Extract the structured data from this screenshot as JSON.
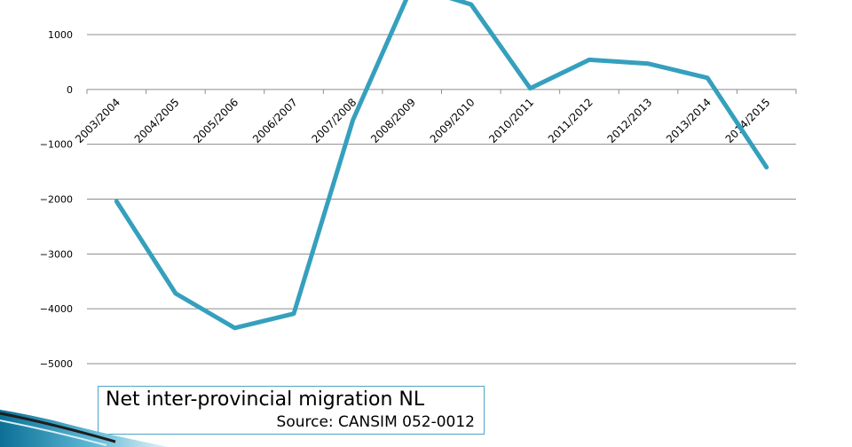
{
  "chart_data": {
    "type": "line",
    "title": "Net inter-provincial migration NL",
    "subtitle": "Source:  CANSIM 052-0012",
    "categories": [
      "2003/2004",
      "2004/2005",
      "2005/2006",
      "2006/2007",
      "2007/2008",
      "2008/2009",
      "2009/2010",
      "2010/2011",
      "2011/2012",
      "2012/2013",
      "2013/2014",
      "2014/2015"
    ],
    "series": [
      {
        "values": [
          -2040,
          -3720,
          -4350,
          -4090,
          -560,
          1880,
          1550,
          20,
          540,
          470,
          210,
          -1420
        ]
      }
    ],
    "y_ticks": [
      1000,
      0,
      -1000,
      -2000,
      -3000,
      -4000,
      -5000
    ],
    "y_tick_labels": [
      "1000",
      "0",
      "−1000",
      "−2000",
      "−3000",
      "−4000",
      "−5000"
    ],
    "ylim": [
      -5000,
      2000
    ],
    "grid": true,
    "colors": {
      "line": "#35a0bd",
      "grid": "#8c8c8c",
      "caption_border": "#4ea3c6"
    }
  }
}
